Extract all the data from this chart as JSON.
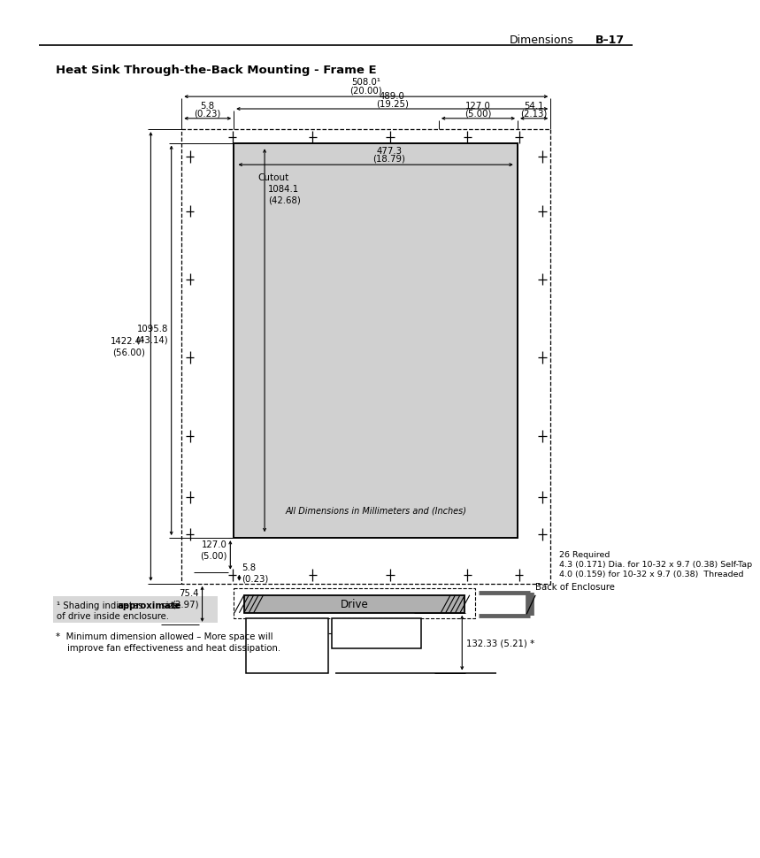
{
  "title": "Heat Sink Through-the-Back Mounting - Frame E",
  "header_right": "Dimensions",
  "header_page": "B–17",
  "bg_color": "#ffffff",
  "note_italic": "All Dimensions in Millimeters and (Inches)",
  "cutout_label": "Cutout",
  "note_26": "26 Required\n4.3 (0.171) Dia. for 10-32 x 9.7 (0.38) Self-Tap\n4.0 (0.159) for 10-32 x 9.7 (0.38)  Threaded",
  "drive_label": "Drive",
  "back_label": "Back of Enclosure",
  "dim_132": "132.33 (5.21) *",
  "fn1_plain": "¹ Shading indicates ",
  "fn1_bold": "approximate",
  "fn1_plain2": " size",
  "fn1_line2": "of drive inside enclosure.",
  "fn_star": "*  Minimum dimension allowed – More space will\n    improve fan effectiveness and heat dissipation."
}
